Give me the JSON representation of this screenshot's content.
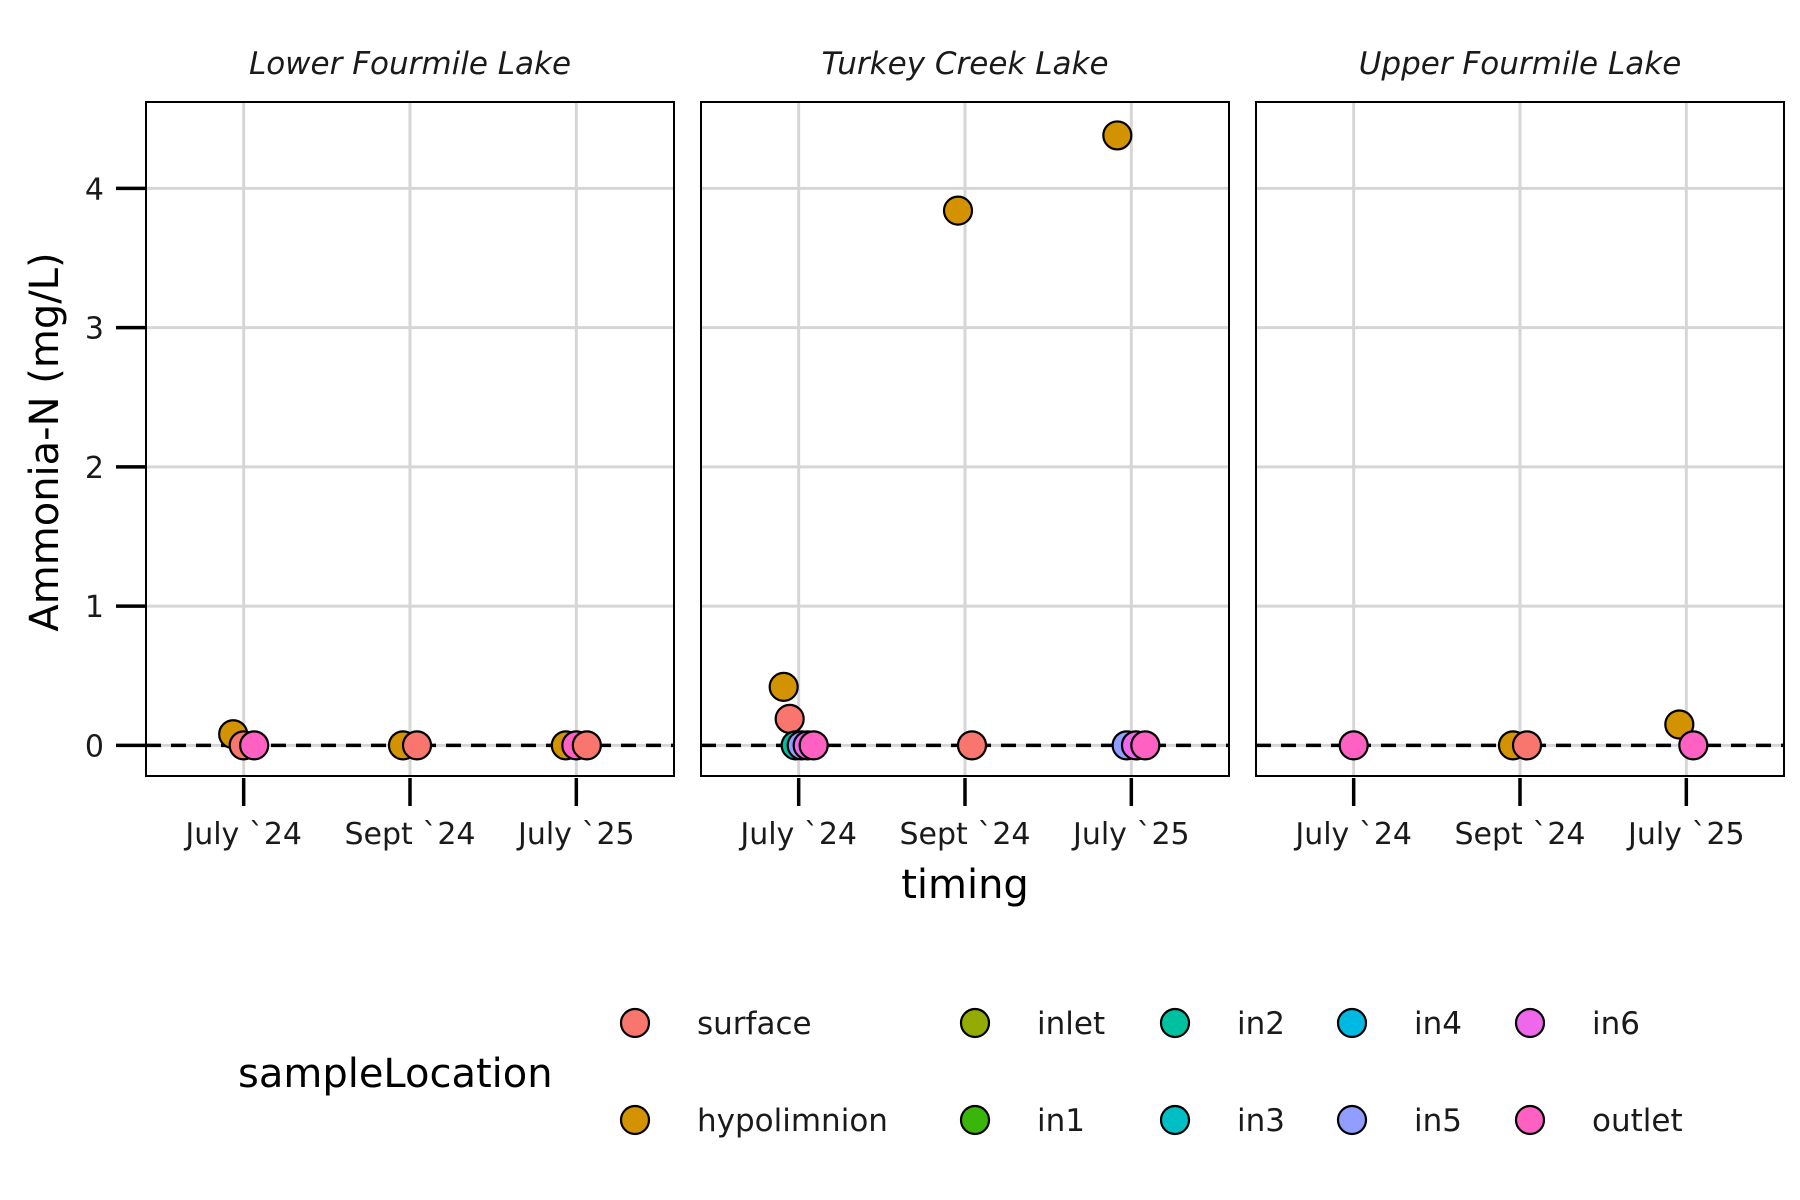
{
  "chart_data": {
    "type": "scatter",
    "ylabel": "Ammonia-N (mg/L)",
    "xlabel": "timing",
    "categories": [
      "July `24",
      "Sept `24",
      "July `25"
    ],
    "y_ticks": [
      0,
      1,
      2,
      3,
      4
    ],
    "ylim": [
      -0.22,
      4.62
    ],
    "reference_line": {
      "y": 0,
      "style": "dashed"
    },
    "grid": true,
    "legend": {
      "title": "sampleLocation",
      "placement": "bottom",
      "entries": [
        {
          "name": "surface",
          "color": "#F8766D"
        },
        {
          "name": "hypolimnion",
          "color": "#D39200"
        },
        {
          "name": "inlet",
          "color": "#93AA00"
        },
        {
          "name": "in1",
          "color": "#3AB60A"
        },
        {
          "name": "in2",
          "color": "#00C19F"
        },
        {
          "name": "in3",
          "color": "#00BFC4"
        },
        {
          "name": "in4",
          "color": "#00B9E3"
        },
        {
          "name": "in5",
          "color": "#919DFF"
        },
        {
          "name": "in6",
          "color": "#EF67EB"
        },
        {
          "name": "outlet",
          "color": "#FF61C3"
        }
      ]
    },
    "panels": [
      {
        "title": "Lower Fourmile Lake",
        "points": [
          {
            "timing": "July `24",
            "location": "hypolimnion",
            "y": 0.08
          },
          {
            "timing": "July `24",
            "location": "surface",
            "y": 0.0
          },
          {
            "timing": "July `24",
            "location": "outlet",
            "y": 0.0
          },
          {
            "timing": "Sept `24",
            "location": "hypolimnion",
            "y": 0.0
          },
          {
            "timing": "Sept `24",
            "location": "surface",
            "y": 0.0
          },
          {
            "timing": "July `25",
            "location": "hypolimnion",
            "y": 0.0
          },
          {
            "timing": "July `25",
            "location": "outlet",
            "y": 0.0
          },
          {
            "timing": "July `25",
            "location": "surface",
            "y": 0.0
          }
        ]
      },
      {
        "title": "Turkey Creek Lake",
        "points": [
          {
            "timing": "July `24",
            "location": "hypolimnion",
            "y": 0.42
          },
          {
            "timing": "July `24",
            "location": "surface",
            "y": 0.19
          },
          {
            "timing": "July `24",
            "location": "in2",
            "y": 0.0
          },
          {
            "timing": "July `24",
            "location": "in5",
            "y": 0.0
          },
          {
            "timing": "July `24",
            "location": "in6",
            "y": 0.0
          },
          {
            "timing": "July `24",
            "location": "outlet",
            "y": 0.0
          },
          {
            "timing": "Sept `24",
            "location": "hypolimnion",
            "y": 3.84
          },
          {
            "timing": "Sept `24",
            "location": "surface",
            "y": 0.0
          },
          {
            "timing": "July `25",
            "location": "hypolimnion",
            "y": 4.38
          },
          {
            "timing": "July `25",
            "location": "in5",
            "y": 0.0
          },
          {
            "timing": "July `25",
            "location": "in6",
            "y": 0.0
          },
          {
            "timing": "July `25",
            "location": "outlet",
            "y": 0.0
          }
        ]
      },
      {
        "title": "Upper Fourmile Lake",
        "points": [
          {
            "timing": "July `24",
            "location": "outlet",
            "y": 0.0
          },
          {
            "timing": "Sept `24",
            "location": "hypolimnion",
            "y": 0.0
          },
          {
            "timing": "Sept `24",
            "location": "surface",
            "y": 0.0
          },
          {
            "timing": "July `25",
            "location": "hypolimnion",
            "y": 0.15
          },
          {
            "timing": "July `25",
            "location": "outlet",
            "y": 0.0
          }
        ]
      }
    ]
  }
}
